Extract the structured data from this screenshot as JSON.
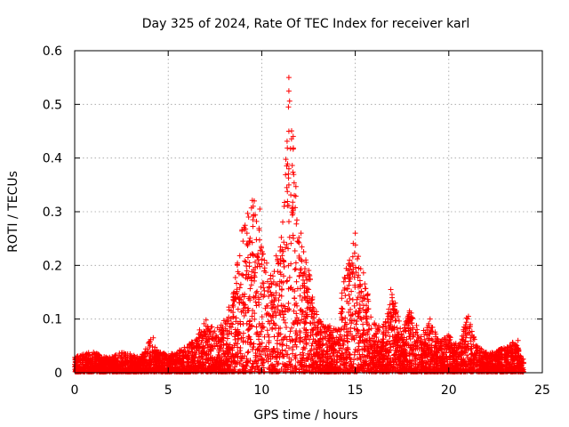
{
  "chart_data": {
    "type": "scatter",
    "title": "Day 325 of 2024, Rate Of TEC Index for receiver karl",
    "xlabel": "GPS time / hours",
    "ylabel": "ROTI / TECUs",
    "xlim": [
      0,
      25
    ],
    "ylim": [
      0,
      0.6
    ],
    "x_ticks": [
      "0",
      "5",
      "10",
      "15",
      "20",
      "25"
    ],
    "y_ticks": [
      "0",
      "0.1",
      "0.2",
      "0.3",
      "0.4",
      "0.5",
      "0.6"
    ],
    "grid": true,
    "marker": "plus",
    "color": "#ff0000",
    "envelope": [
      [
        0.0,
        0.03
      ],
      [
        0.5,
        0.035
      ],
      [
        1.0,
        0.04
      ],
      [
        1.5,
        0.03
      ],
      [
        2.0,
        0.03
      ],
      [
        2.5,
        0.04
      ],
      [
        3.0,
        0.035
      ],
      [
        3.5,
        0.03
      ],
      [
        4.0,
        0.065
      ],
      [
        4.5,
        0.04
      ],
      [
        5.0,
        0.035
      ],
      [
        5.5,
        0.04
      ],
      [
        6.0,
        0.05
      ],
      [
        6.5,
        0.07
      ],
      [
        7.0,
        0.1
      ],
      [
        7.5,
        0.08
      ],
      [
        8.0,
        0.1
      ],
      [
        8.5,
        0.15
      ],
      [
        9.0,
        0.3
      ],
      [
        9.5,
        0.33
      ],
      [
        10.0,
        0.25
      ],
      [
        10.5,
        0.18
      ],
      [
        11.0,
        0.25
      ],
      [
        11.5,
        0.55
      ],
      [
        12.0,
        0.25
      ],
      [
        12.5,
        0.2
      ],
      [
        13.0,
        0.1
      ],
      [
        13.5,
        0.09
      ],
      [
        14.0,
        0.08
      ],
      [
        14.5,
        0.2
      ],
      [
        15.0,
        0.26
      ],
      [
        15.5,
        0.18
      ],
      [
        16.0,
        0.1
      ],
      [
        16.5,
        0.09
      ],
      [
        17.0,
        0.15
      ],
      [
        17.5,
        0.08
      ],
      [
        18.0,
        0.12
      ],
      [
        18.5,
        0.07
      ],
      [
        19.0,
        0.1
      ],
      [
        19.5,
        0.06
      ],
      [
        20.0,
        0.07
      ],
      [
        20.5,
        0.05
      ],
      [
        21.0,
        0.11
      ],
      [
        21.5,
        0.05
      ],
      [
        22.0,
        0.04
      ],
      [
        22.5,
        0.04
      ],
      [
        23.0,
        0.05
      ],
      [
        23.5,
        0.06
      ],
      [
        24.0,
        0.03
      ]
    ],
    "outliers": [
      {
        "x": 11.45,
        "y": 0.55
      },
      {
        "x": 11.45,
        "y": 0.525
      },
      {
        "x": 11.45,
        "y": 0.45
      },
      {
        "x": 11.45,
        "y": 0.38
      },
      {
        "x": 11.45,
        "y": 0.35
      },
      {
        "x": 11.2,
        "y": 0.31
      },
      {
        "x": 9.6,
        "y": 0.32
      },
      {
        "x": 9.9,
        "y": 0.305
      },
      {
        "x": 9.3,
        "y": 0.29
      },
      {
        "x": 15.0,
        "y": 0.26
      },
      {
        "x": 12.1,
        "y": 0.26
      },
      {
        "x": 9.0,
        "y": 0.245
      },
      {
        "x": 16.9,
        "y": 0.155
      },
      {
        "x": 17.9,
        "y": 0.115
      },
      {
        "x": 21.05,
        "y": 0.105
      },
      {
        "x": 19.0,
        "y": 0.1
      },
      {
        "x": 4.2,
        "y": 0.065
      },
      {
        "x": 23.7,
        "y": 0.06
      }
    ]
  }
}
